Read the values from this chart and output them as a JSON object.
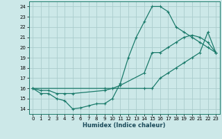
{
  "xlabel": "Humidex (Indice chaleur)",
  "bg_color": "#cce8e8",
  "line_color": "#1a7a6a",
  "grid_color": "#b8d8d8",
  "xlim": [
    -0.5,
    23.5
  ],
  "ylim": [
    13.5,
    24.5
  ],
  "yticks": [
    14,
    15,
    16,
    17,
    18,
    19,
    20,
    21,
    22,
    23,
    24
  ],
  "xticks": [
    0,
    1,
    2,
    3,
    4,
    5,
    6,
    7,
    8,
    9,
    10,
    11,
    12,
    13,
    14,
    15,
    16,
    17,
    18,
    19,
    20,
    21,
    22,
    23
  ],
  "line1_x": [
    0,
    1,
    2,
    3,
    4,
    5,
    6,
    7,
    8,
    9,
    10,
    11,
    12,
    13,
    14,
    15,
    16,
    17,
    18,
    19,
    20,
    21,
    22,
    23
  ],
  "line1_y": [
    16,
    15.5,
    15.5,
    15,
    14.8,
    14,
    14.1,
    14.3,
    14.5,
    14.5,
    15,
    16.5,
    19,
    21,
    22.5,
    24,
    24,
    23.5,
    22,
    21.5,
    21,
    20.5,
    20,
    19.5
  ],
  "line2_x": [
    0,
    1,
    2,
    3,
    4,
    5,
    9,
    10,
    11,
    14,
    15,
    16,
    17,
    18,
    19,
    20,
    21,
    22,
    23
  ],
  "line2_y": [
    16,
    15.8,
    15.8,
    15.5,
    15.5,
    15.5,
    15.8,
    16,
    16.3,
    17.5,
    19.5,
    19.5,
    20,
    20.5,
    21,
    21.2,
    21,
    20.5,
    19.5
  ],
  "line3_x": [
    0,
    9,
    10,
    14,
    15,
    16,
    17,
    18,
    19,
    20,
    21,
    22,
    23
  ],
  "line3_y": [
    16,
    16,
    16,
    16,
    16,
    17,
    17.5,
    18,
    18.5,
    19,
    19.5,
    21.5,
    19.5
  ]
}
